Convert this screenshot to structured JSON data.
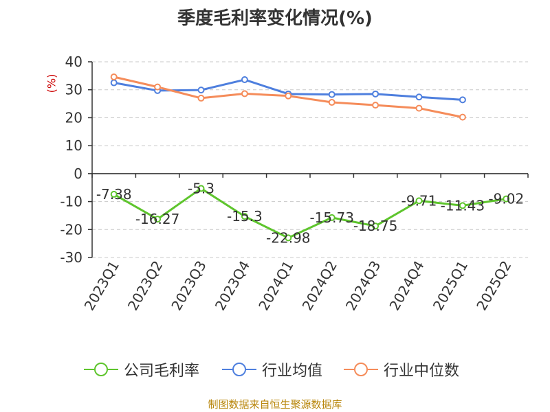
{
  "title": "季度毛利率变化情况(%)",
  "footer": "制图数据来自恒生聚源数据库",
  "chart_data": {
    "type": "line",
    "title": "季度毛利率变化情况(%)",
    "xlabel": "",
    "ylabel": "(%)",
    "categories": [
      "2023Q1",
      "2023Q2",
      "2023Q3",
      "2023Q4",
      "2024Q1",
      "2024Q2",
      "2024Q3",
      "2024Q4",
      "2025Q1",
      "2025Q2"
    ],
    "ylim": [
      -30,
      40
    ],
    "yticks": [
      -30,
      -20,
      -10,
      0,
      10,
      20,
      30,
      40
    ],
    "grid": true,
    "legend_position": "bottom",
    "series": [
      {
        "name": "公司毛利率",
        "color": "#5ec52d",
        "values": [
          -7.38,
          -16.27,
          -5.3,
          -15.3,
          -22.98,
          -15.73,
          -18.75,
          -9.71,
          -11.43,
          -9.02
        ],
        "labels": [
          "-7.38",
          "-16.27",
          "-5.3",
          "-15.3",
          "-22.98",
          "-15.73",
          "-18.75",
          "-9.71",
          "-11.43",
          "-9.02"
        ]
      },
      {
        "name": "行业均值",
        "color": "#4e7fde",
        "values": [
          32.5,
          29.7,
          29.9,
          33.6,
          28.5,
          28.3,
          28.5,
          27.4,
          26.4,
          null
        ]
      },
      {
        "name": "行业中位数",
        "color": "#f58c5a",
        "values": [
          34.6,
          31.0,
          27.0,
          28.6,
          27.8,
          25.5,
          24.5,
          23.4,
          20.2,
          null
        ]
      }
    ]
  }
}
